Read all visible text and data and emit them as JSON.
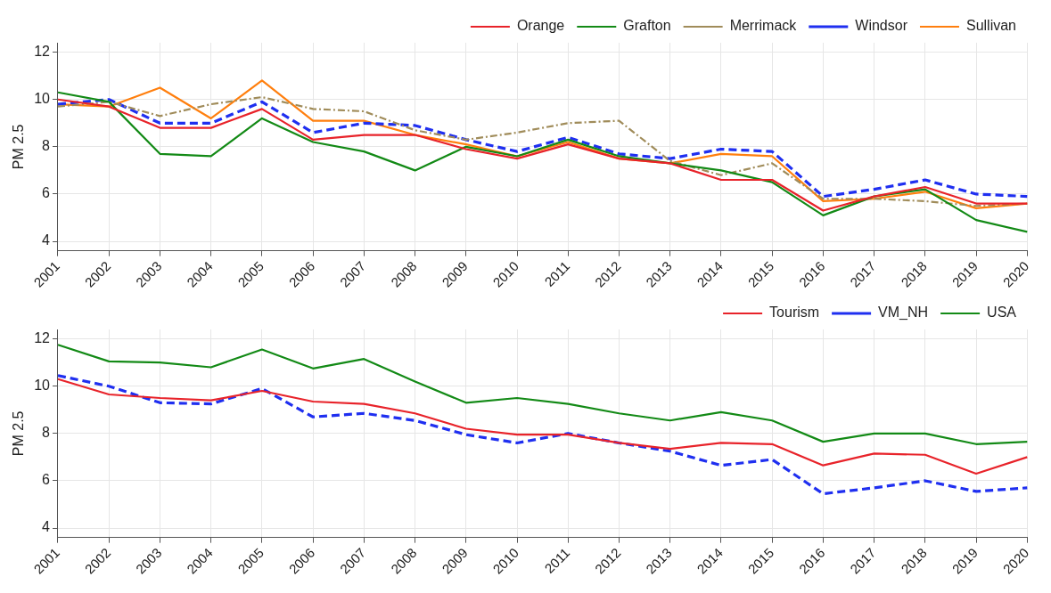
{
  "chart_data": [
    {
      "type": "line",
      "ylabel": "PM 2.5",
      "categories": [
        "2001",
        "2002",
        "2003",
        "2004",
        "2005",
        "2006",
        "2007",
        "2008",
        "2009",
        "2010",
        "2011",
        "2012",
        "2013",
        "2014",
        "2015",
        "2016",
        "2017",
        "2018",
        "2019",
        "2020"
      ],
      "ylim": [
        3.6,
        12.4
      ],
      "yticks": [
        4,
        6,
        8,
        10,
        12
      ],
      "grid": true,
      "legend": "top right",
      "marker": "none",
      "series": [
        {
          "name": "Orange",
          "color": "#e8232a",
          "line_style": "solid",
          "values": [
            10.0,
            9.7,
            8.8,
            8.8,
            9.6,
            8.3,
            8.5,
            8.5,
            7.9,
            7.5,
            8.1,
            7.5,
            7.3,
            6.6,
            6.6,
            5.3,
            5.9,
            6.3,
            5.6,
            5.6
          ]
        },
        {
          "name": "Grafton",
          "color": "#138a16",
          "line_style": "solid",
          "values": [
            10.3,
            9.9,
            7.7,
            7.6,
            9.2,
            8.2,
            7.8,
            7.0,
            8.0,
            7.6,
            8.3,
            7.6,
            7.3,
            7.0,
            6.5,
            5.1,
            5.9,
            6.2,
            4.9,
            4.4
          ]
        },
        {
          "name": "Merrimack",
          "color": "#a08c5a",
          "line_style": "dotted",
          "values": [
            9.7,
            9.9,
            9.3,
            9.8,
            10.1,
            9.6,
            9.5,
            8.7,
            8.3,
            8.6,
            9.0,
            9.1,
            7.4,
            6.8,
            7.3,
            5.8,
            5.8,
            5.7,
            5.5,
            5.6
          ]
        },
        {
          "name": "Windsor",
          "color": "#1f2ff0",
          "line_style": "dashed",
          "values": [
            9.8,
            10.0,
            9.0,
            9.0,
            9.9,
            8.6,
            9.0,
            8.9,
            8.3,
            7.8,
            8.4,
            7.7,
            7.5,
            7.9,
            7.8,
            5.9,
            6.2,
            6.6,
            6.0,
            5.9
          ]
        },
        {
          "name": "Sullivan",
          "color": "#ff7f0e",
          "line_style": "solid",
          "values": [
            9.8,
            9.7,
            10.5,
            9.2,
            10.8,
            9.1,
            9.1,
            8.5,
            8.1,
            7.6,
            8.2,
            7.5,
            7.3,
            7.7,
            7.6,
            5.7,
            5.8,
            6.1,
            5.4,
            5.6
          ]
        }
      ]
    },
    {
      "type": "line",
      "ylabel": "PM 2.5",
      "categories": [
        "2001",
        "2002",
        "2003",
        "2004",
        "2005",
        "2006",
        "2007",
        "2008",
        "2009",
        "2010",
        "2011",
        "2012",
        "2013",
        "2014",
        "2015",
        "2016",
        "2017",
        "2018",
        "2019",
        "2020"
      ],
      "ylim": [
        3.6,
        12.4
      ],
      "yticks": [
        4,
        6,
        8,
        10,
        12
      ],
      "grid": true,
      "legend": "top right",
      "marker": "none",
      "series": [
        {
          "name": "Tourism",
          "color": "#e8232a",
          "line_style": "solid",
          "values": [
            10.3,
            9.65,
            9.5,
            9.4,
            9.8,
            9.35,
            9.25,
            8.85,
            8.2,
            7.95,
            7.95,
            7.6,
            7.35,
            7.6,
            7.55,
            6.65,
            7.15,
            7.1,
            6.3,
            7.0
          ]
        },
        {
          "name": "VM_NH",
          "color": "#1f2ff0",
          "line_style": "dashed",
          "values": [
            10.45,
            10.0,
            9.3,
            9.25,
            9.9,
            8.7,
            8.85,
            8.55,
            7.95,
            7.6,
            8.0,
            7.6,
            7.25,
            6.65,
            6.9,
            5.45,
            5.7,
            6.0,
            5.55,
            5.7
          ]
        },
        {
          "name": "USA",
          "color": "#138a16",
          "line_style": "solid",
          "values": [
            11.75,
            11.05,
            11.0,
            10.8,
            11.55,
            10.75,
            11.15,
            10.2,
            9.3,
            9.5,
            9.25,
            8.85,
            8.55,
            8.9,
            8.55,
            7.65,
            8.0,
            8.0,
            7.55,
            7.65
          ]
        }
      ]
    }
  ]
}
